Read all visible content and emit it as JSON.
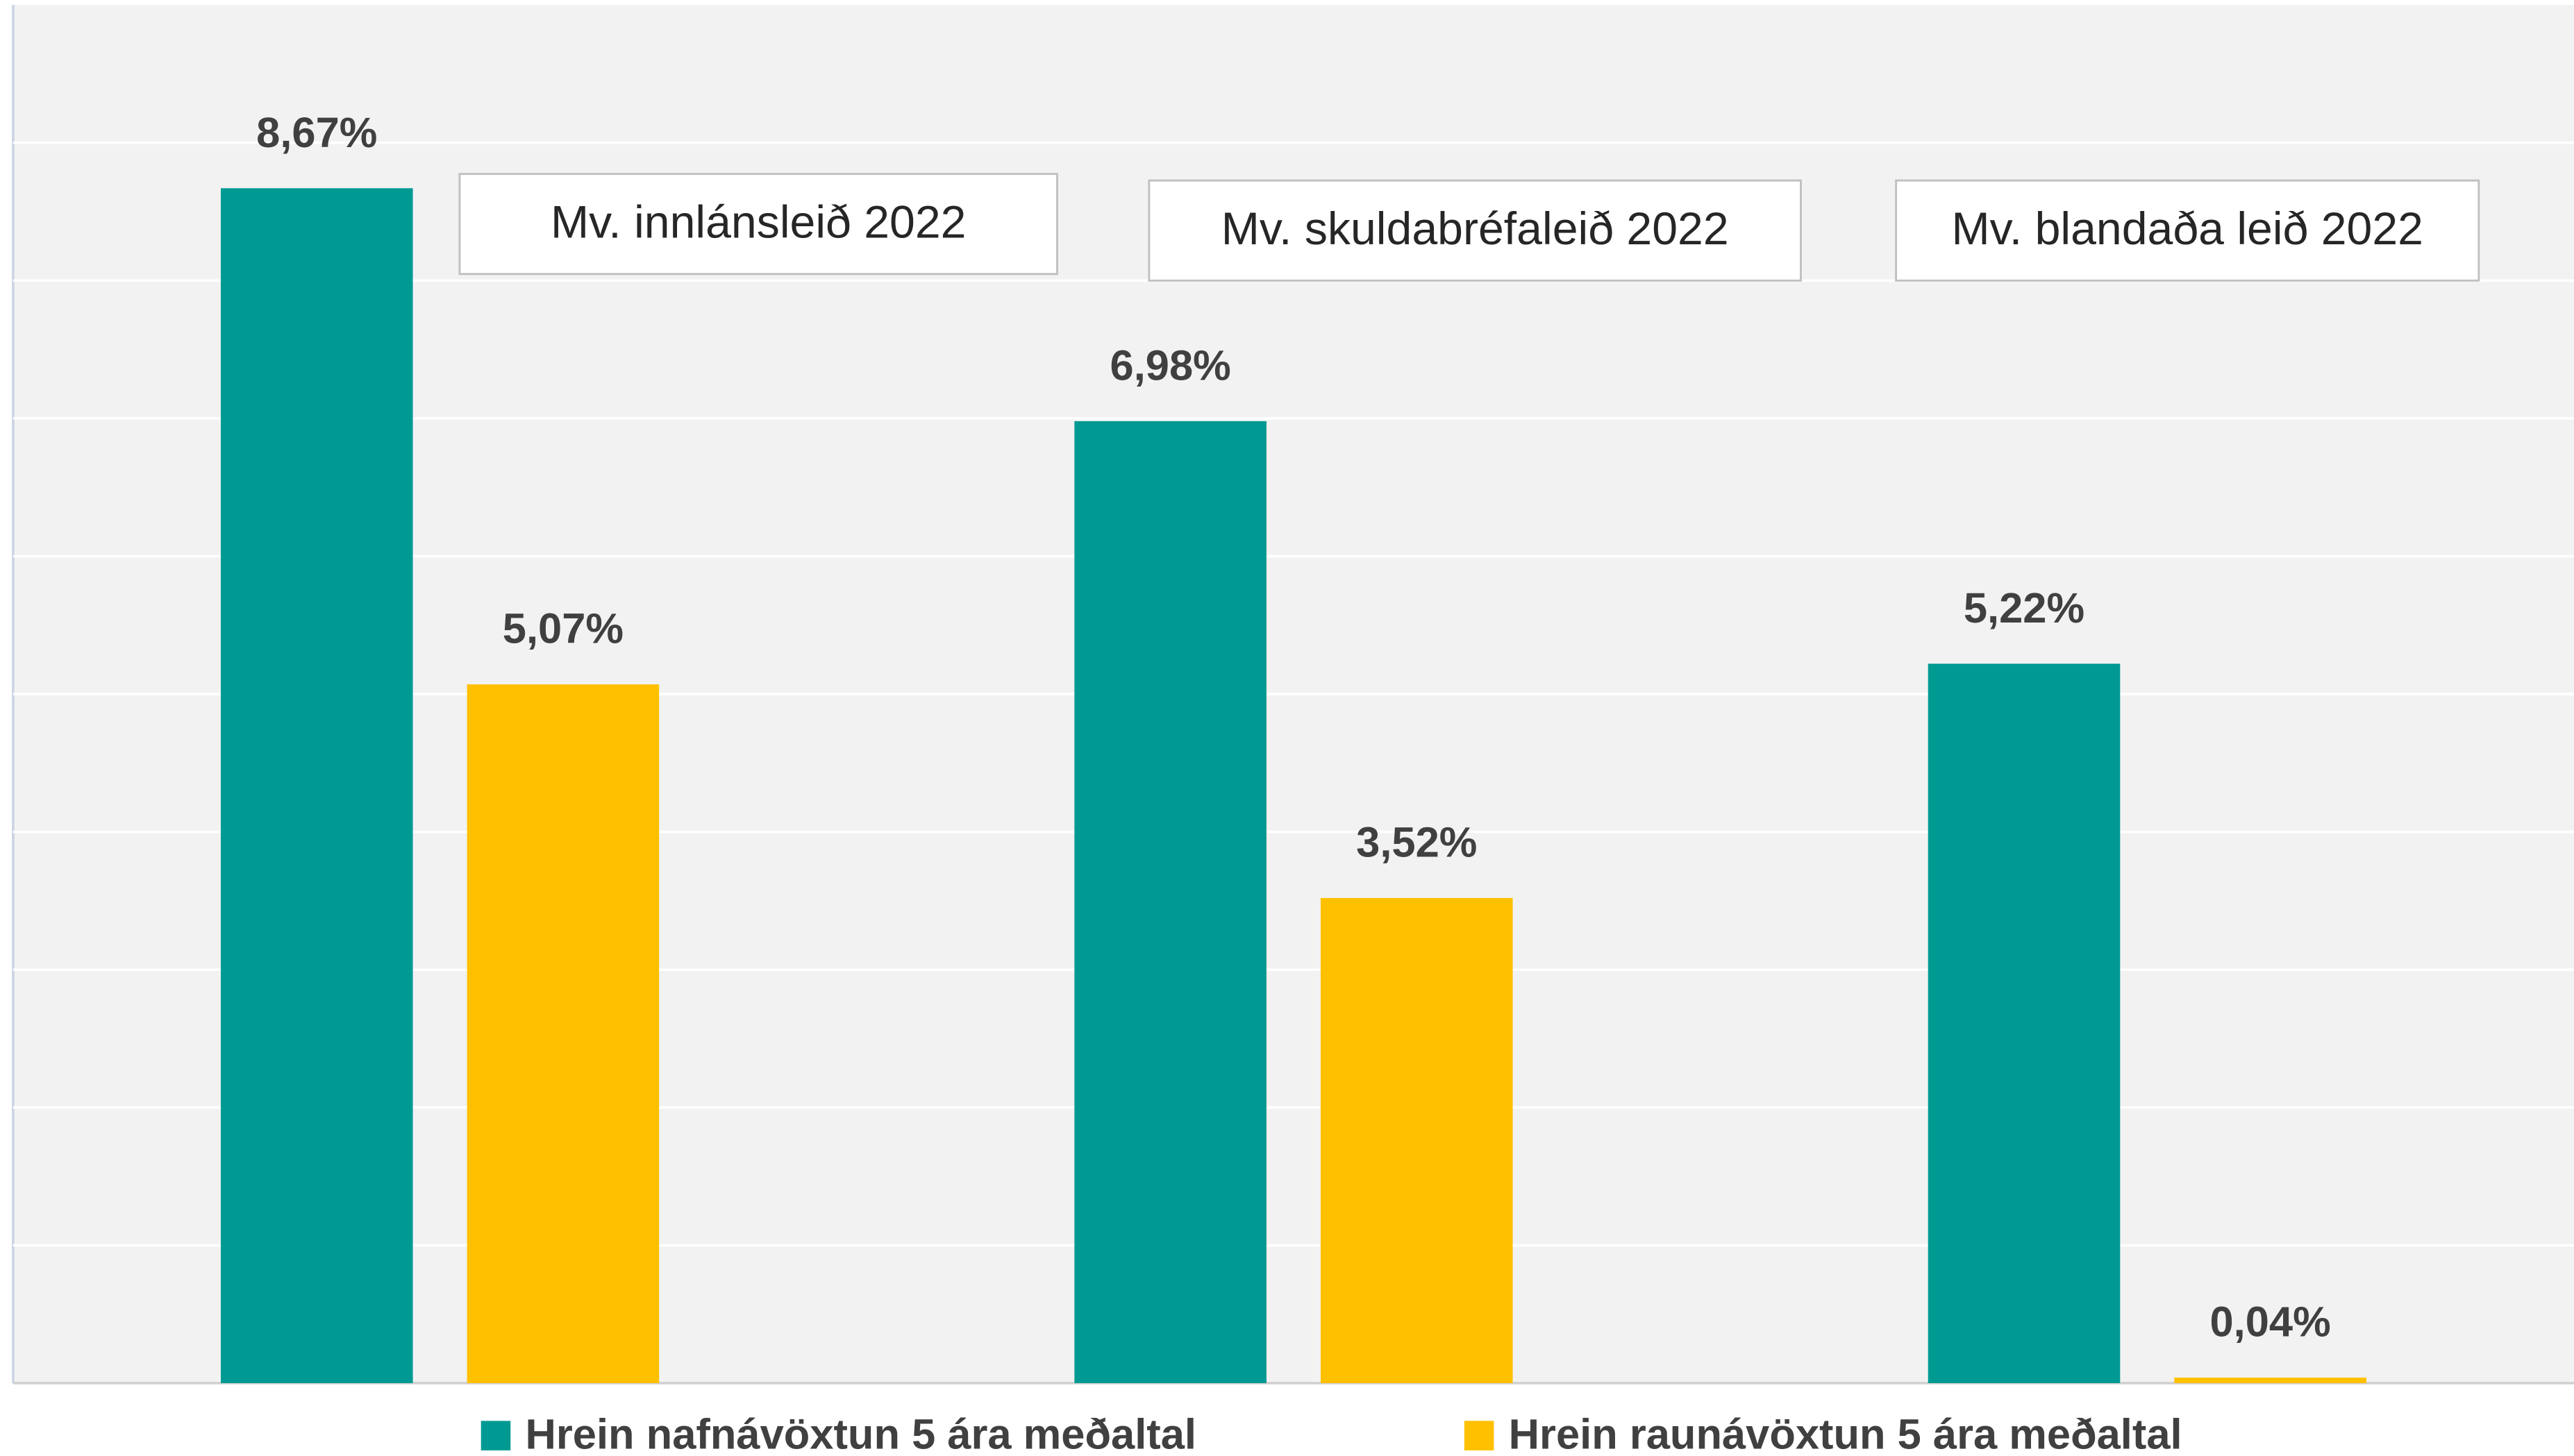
{
  "chart_data": {
    "type": "bar",
    "categories": [
      "Mv. innlánsleið 2022",
      "Mv. skuldabréfaleið 2022",
      "Mv. blandaða leið 2022"
    ],
    "series": [
      {
        "name": "Hrein nafnávöxtun 5 ára meðaltal",
        "color": "#009a93",
        "values": [
          8.67,
          6.98,
          5.22
        ],
        "value_labels": [
          "8,67%",
          "6,98%",
          "5,22%"
        ]
      },
      {
        "name": "Hrein raunávöxtun 5 ára meðaltal",
        "color": "#ffc000",
        "values": [
          5.07,
          3.52,
          0.04
        ],
        "value_labels": [
          "5,07%",
          "3,52%",
          "0,04%"
        ]
      }
    ],
    "ylim": [
      0,
      10
    ],
    "yticks": [
      0,
      1,
      2,
      3,
      4,
      5,
      6,
      7,
      8,
      9
    ],
    "grid": true,
    "legend": "bottom"
  }
}
